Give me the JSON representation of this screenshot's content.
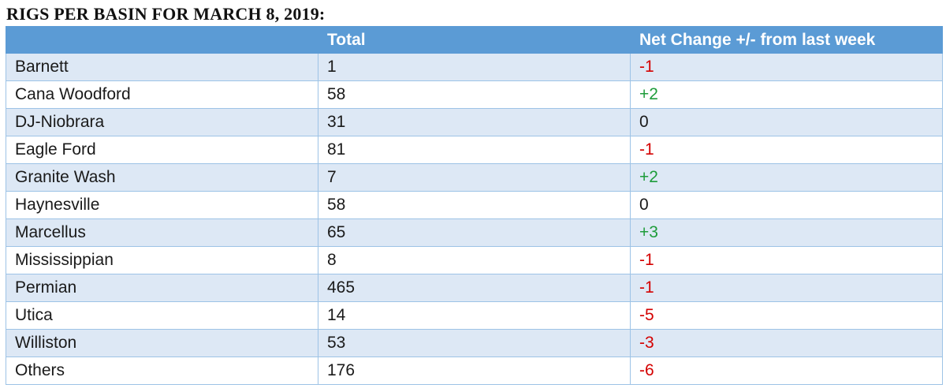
{
  "title": "RIGS PER BASIN FOR MARCH 8, 2019:",
  "columns": [
    "",
    "Total",
    "Net Change +/- from last week"
  ],
  "rows": [
    {
      "basin": "Barnett",
      "total": "1",
      "change": "-1"
    },
    {
      "basin": "Cana Woodford",
      "total": "58",
      "change": "+2"
    },
    {
      "basin": "DJ-Niobrara",
      "total": "31",
      "change": "0"
    },
    {
      "basin": "Eagle Ford",
      "total": "81",
      "change": "-1"
    },
    {
      "basin": "Granite Wash",
      "total": "7",
      "change": "+2"
    },
    {
      "basin": "Haynesville",
      "total": "58",
      "change": "0"
    },
    {
      "basin": "Marcellus",
      "total": "65",
      "change": "+3"
    },
    {
      "basin": "Mississippian",
      "total": "8",
      "change": "-1"
    },
    {
      "basin": "Permian",
      "total": "465",
      "change": "-1"
    },
    {
      "basin": "Utica",
      "total": "14",
      "change": "-5"
    },
    {
      "basin": "Williston",
      "total": "53",
      "change": "-3"
    },
    {
      "basin": "Others",
      "total": "176",
      "change": "-6"
    }
  ],
  "colors": {
    "header_bg": "#5b9bd5",
    "band_bg": "#dde8f5",
    "negative": "#d40000",
    "positive": "#1e9c3a"
  }
}
